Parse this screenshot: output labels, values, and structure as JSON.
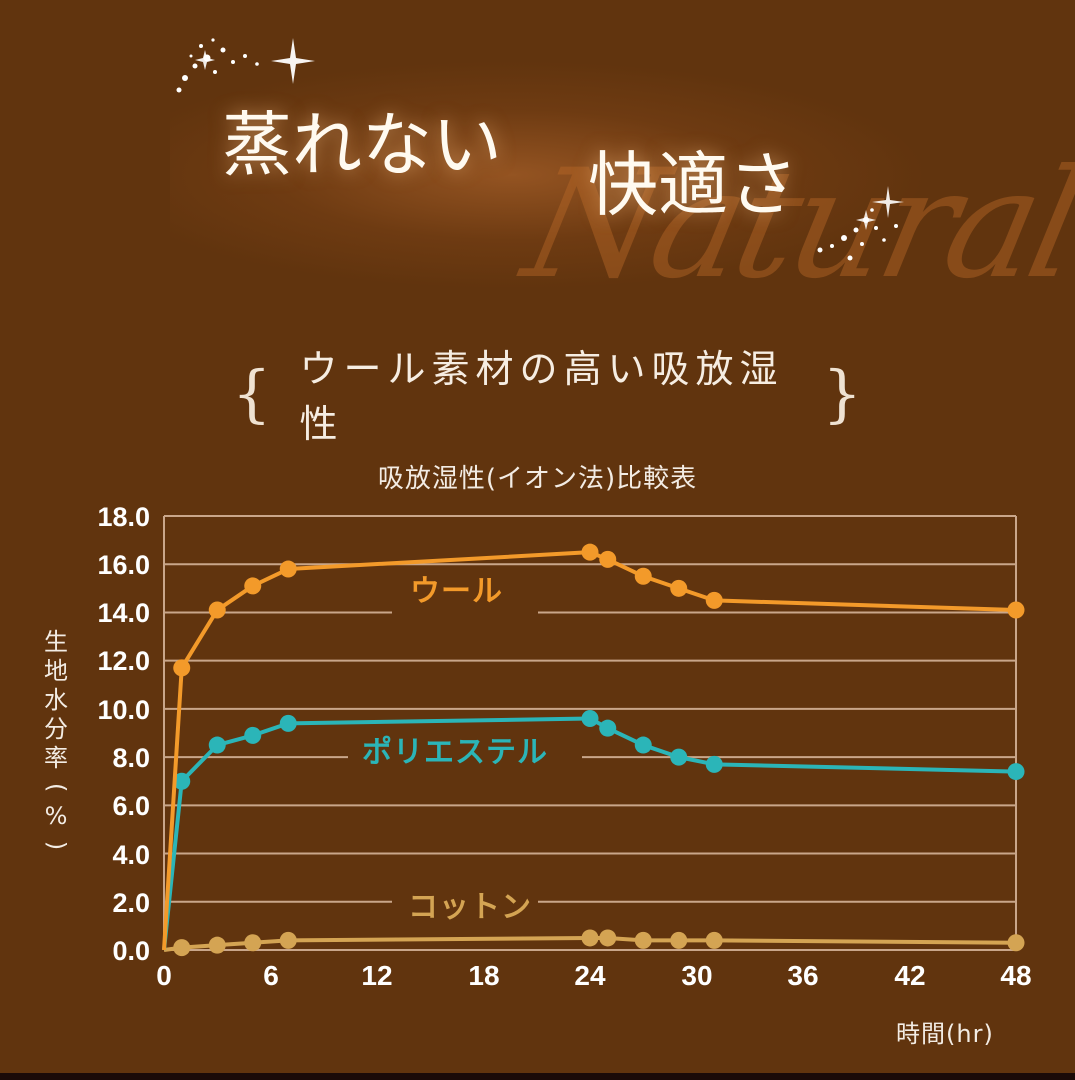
{
  "header": {
    "headline_line1": "蒸れない",
    "headline_line2": "快適さ",
    "watermark": "Natural",
    "subtitle": "ウール素材の高い吸放湿性",
    "brace_left": "{",
    "brace_right": "}"
  },
  "chart": {
    "title": "吸放湿性(イオン法)比較表",
    "ylabel": "生地水分率(%)",
    "ylabel_chars": [
      "生",
      "地",
      "水",
      "分",
      "率",
      "(",
      "%",
      ")"
    ],
    "xlabel": "時間(hr)",
    "yticks": [
      "18.0",
      "16.0",
      "14.0",
      "12.0",
      "10.0",
      "8.0",
      "6.0",
      "4.0",
      "2.0",
      "0.0"
    ],
    "xticks": [
      "0",
      "6",
      "12",
      "18",
      "24",
      "30",
      "36",
      "42",
      "48"
    ],
    "series_labels": {
      "wool": "ウール",
      "polyester": "ポリエステル",
      "cotton": "コットン"
    }
  },
  "colors": {
    "background": "#61340e",
    "wool": "#f39a2a",
    "polyester": "#2bb5b8",
    "cotton": "#d4a453",
    "grid": "#c9a68a"
  },
  "chart_data": {
    "type": "line",
    "title": "吸放湿性(イオン法)比較表",
    "xlabel": "時間(hr)",
    "ylabel": "生地水分率(%)",
    "xlim": [
      0,
      48
    ],
    "ylim": [
      0,
      18
    ],
    "xticks": [
      0,
      6,
      12,
      18,
      24,
      30,
      36,
      42,
      48
    ],
    "yticks": [
      0,
      2,
      4,
      6,
      8,
      10,
      12,
      14,
      16,
      18
    ],
    "grid": "horizontal",
    "legend": "inline labels",
    "x": [
      0,
      1,
      3,
      5,
      7,
      24,
      25,
      27,
      29,
      31,
      48
    ],
    "series": [
      {
        "name": "ウール",
        "color": "#f39a2a",
        "values": [
          0,
          11.7,
          14.1,
          15.1,
          15.8,
          16.5,
          16.2,
          15.5,
          15.0,
          14.5,
          14.1
        ]
      },
      {
        "name": "ポリエステル",
        "color": "#2bb5b8",
        "values": [
          0,
          7.0,
          8.5,
          8.9,
          9.4,
          9.6,
          9.2,
          8.5,
          8.0,
          7.7,
          7.4
        ]
      },
      {
        "name": "コットン",
        "color": "#d4a453",
        "values": [
          0,
          0.1,
          0.2,
          0.3,
          0.4,
          0.5,
          0.5,
          0.4,
          0.4,
          0.4,
          0.3
        ]
      }
    ]
  }
}
